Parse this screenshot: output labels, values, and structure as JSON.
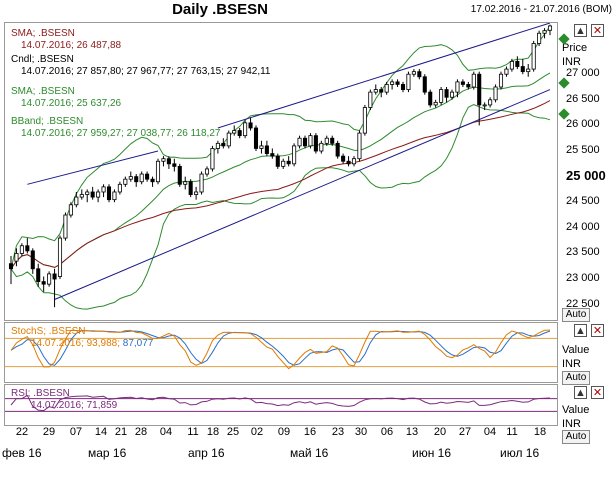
{
  "title": "Daily .BSESN",
  "date_range": "17.02.2016 - 21.07.2016 (BOM)",
  "main_panel": {
    "legend": [
      {
        "label": "SMA; .BSESN",
        "value": "14.07.2016; 26 487,88",
        "color": "#8b1a1a"
      },
      {
        "label": "Cndl; .BSESN",
        "value": "14.07.2016; 27 857,80; 27 967,77; 27 763,15; 27 942,11",
        "color": "#000000"
      },
      {
        "label": "SMA; .BSESN",
        "value": "14.07.2016; 25 637,26",
        "color": "#2e8b2e"
      },
      {
        "label": "BBand; .BSESN",
        "value": "14.07.2016; 27 959,27; 27 038,77; 26 118,27",
        "color": "#2e8b2e"
      }
    ],
    "axis_title": "Price",
    "axis_unit": "INR",
    "auto_label": "Auto",
    "y_ticks": [
      "27 000",
      "26 500",
      "26 000",
      "25 500",
      "25 000",
      "24 500",
      "24 000",
      "23 500",
      "23 000",
      "22 500"
    ]
  },
  "stoch_panel": {
    "legend_label": "StochS; .BSESN",
    "legend_value_a": "14.07.2016; 93,988;",
    "legend_value_b": "87,077",
    "axis_title": "Value",
    "axis_unit": "INR",
    "auto_label": "Auto"
  },
  "rsi_panel": {
    "legend_label": "RSI; .BSESN",
    "legend_value": "14.07.2016; 71,859",
    "axis_title": "Value",
    "axis_unit": "INR",
    "auto_label": "Auto"
  },
  "x_axis": {
    "day_ticks": [
      "22",
      "29",
      "07",
      "14",
      "21",
      "28",
      "04",
      "11",
      "18",
      "25",
      "02",
      "09",
      "16",
      "23",
      "30",
      "06",
      "13",
      "20",
      "27",
      "04",
      "11",
      "18"
    ],
    "month_labels": [
      "фев 16",
      "мар 16",
      "апр 16",
      "май 16",
      "июн 16",
      "июл 16"
    ]
  },
  "colors": {
    "candle": "#000000",
    "sma_long": "#8b1a1a",
    "sma_short": "#2e8b2e",
    "bbands": "#2e8b2e",
    "trendline": "#1a1a8c",
    "stoch_k": "#e07b00",
    "stoch_d": "#2a6fc9",
    "stoch_band": "#e0a040",
    "rsi": "#7b2a7b"
  },
  "chart_data": {
    "type": "candlestick",
    "y_unit": "INR",
    "ylim": [
      22200,
      28000
    ],
    "candles": [
      {
        "date": "2016-02-17",
        "o": 23300,
        "h": 23450,
        "l": 22900,
        "c": 23200
      },
      {
        "date": "2016-02-18",
        "o": 23350,
        "h": 23600,
        "l": 23250,
        "c": 23500
      },
      {
        "date": "2016-02-19",
        "o": 23500,
        "h": 23700,
        "l": 23450,
        "c": 23650
      },
      {
        "date": "2016-02-22",
        "o": 23650,
        "h": 23800,
        "l": 23500,
        "c": 23550
      },
      {
        "date": "2016-02-23",
        "o": 23550,
        "h": 23600,
        "l": 23100,
        "c": 23200
      },
      {
        "date": "2016-02-24",
        "o": 23200,
        "h": 23300,
        "l": 22850,
        "c": 22950
      },
      {
        "date": "2016-02-25",
        "o": 22950,
        "h": 23050,
        "l": 22750,
        "c": 22900
      },
      {
        "date": "2016-02-26",
        "o": 22900,
        "h": 23150,
        "l": 22850,
        "c": 23100
      },
      {
        "date": "2016-02-29",
        "o": 23100,
        "h": 23200,
        "l": 22450,
        "c": 23000
      },
      {
        "date": "2016-03-01",
        "o": 23050,
        "h": 23850,
        "l": 23000,
        "c": 23800
      },
      {
        "date": "2016-03-02",
        "o": 23800,
        "h": 24300,
        "l": 23750,
        "c": 24250
      },
      {
        "date": "2016-03-03",
        "o": 24250,
        "h": 24500,
        "l": 24200,
        "c": 24450
      },
      {
        "date": "2016-03-04",
        "o": 24450,
        "h": 24700,
        "l": 24400,
        "c": 24600
      },
      {
        "date": "2016-03-08",
        "o": 24600,
        "h": 24750,
        "l": 24550,
        "c": 24650
      },
      {
        "date": "2016-03-09",
        "o": 24650,
        "h": 24750,
        "l": 24500,
        "c": 24700
      },
      {
        "date": "2016-03-10",
        "o": 24700,
        "h": 24800,
        "l": 24550,
        "c": 24600
      },
      {
        "date": "2016-03-11",
        "o": 24600,
        "h": 24750,
        "l": 24500,
        "c": 24700
      },
      {
        "date": "2016-03-14",
        "o": 24700,
        "h": 24850,
        "l": 24600,
        "c": 24800
      },
      {
        "date": "2016-03-15",
        "o": 24800,
        "h": 24850,
        "l": 24500,
        "c": 24550
      },
      {
        "date": "2016-03-16",
        "o": 24550,
        "h": 24750,
        "l": 24500,
        "c": 24700
      },
      {
        "date": "2016-03-17",
        "o": 24700,
        "h": 24900,
        "l": 24650,
        "c": 24850
      },
      {
        "date": "2016-03-18",
        "o": 24850,
        "h": 25000,
        "l": 24800,
        "c": 24950
      },
      {
        "date": "2016-03-21",
        "o": 24950,
        "h": 25100,
        "l": 24900,
        "c": 25000
      },
      {
        "date": "2016-03-22",
        "o": 25000,
        "h": 25050,
        "l": 24800,
        "c": 24900
      },
      {
        "date": "2016-03-23",
        "o": 24900,
        "h": 25100,
        "l": 24850,
        "c": 25050
      },
      {
        "date": "2016-03-28",
        "o": 25050,
        "h": 25100,
        "l": 24900,
        "c": 24950
      },
      {
        "date": "2016-03-29",
        "o": 24950,
        "h": 25000,
        "l": 24800,
        "c": 24900
      },
      {
        "date": "2016-03-30",
        "o": 24900,
        "h": 25350,
        "l": 24850,
        "c": 25300
      },
      {
        "date": "2016-03-31",
        "o": 25300,
        "h": 25400,
        "l": 25200,
        "c": 25350
      },
      {
        "date": "2016-04-01",
        "o": 25350,
        "h": 25400,
        "l": 25150,
        "c": 25250
      },
      {
        "date": "2016-04-04",
        "o": 25250,
        "h": 25350,
        "l": 25100,
        "c": 25200
      },
      {
        "date": "2016-04-05",
        "o": 25200,
        "h": 25250,
        "l": 24800,
        "c": 24850
      },
      {
        "date": "2016-04-06",
        "o": 24850,
        "h": 25000,
        "l": 24750,
        "c": 24900
      },
      {
        "date": "2016-04-07",
        "o": 24900,
        "h": 24950,
        "l": 24600,
        "c": 24650
      },
      {
        "date": "2016-04-08",
        "o": 24650,
        "h": 24800,
        "l": 24550,
        "c": 24700
      },
      {
        "date": "2016-04-11",
        "o": 24700,
        "h": 25100,
        "l": 24650,
        "c": 25050
      },
      {
        "date": "2016-04-12",
        "o": 25050,
        "h": 25200,
        "l": 25000,
        "c": 25150
      },
      {
        "date": "2016-04-13",
        "o": 25150,
        "h": 25600,
        "l": 25100,
        "c": 25550
      },
      {
        "date": "2016-04-18",
        "o": 25550,
        "h": 25700,
        "l": 25450,
        "c": 25650
      },
      {
        "date": "2016-04-20",
        "o": 25650,
        "h": 25750,
        "l": 25550,
        "c": 25600
      },
      {
        "date": "2016-04-21",
        "o": 25600,
        "h": 25900,
        "l": 25550,
        "c": 25850
      },
      {
        "date": "2016-04-22",
        "o": 25850,
        "h": 26000,
        "l": 25800,
        "c": 25900
      },
      {
        "date": "2016-04-25",
        "o": 25900,
        "h": 25950,
        "l": 25750,
        "c": 25800
      },
      {
        "date": "2016-04-26",
        "o": 25800,
        "h": 26100,
        "l": 25750,
        "c": 26050
      },
      {
        "date": "2016-04-27",
        "o": 26050,
        "h": 26150,
        "l": 25900,
        "c": 25950
      },
      {
        "date": "2016-04-28",
        "o": 25950,
        "h": 26000,
        "l": 25500,
        "c": 25550
      },
      {
        "date": "2016-04-29",
        "o": 25550,
        "h": 25700,
        "l": 25450,
        "c": 25600
      },
      {
        "date": "2016-05-02",
        "o": 25600,
        "h": 25700,
        "l": 25400,
        "c": 25450
      },
      {
        "date": "2016-05-03",
        "o": 25450,
        "h": 25550,
        "l": 25350,
        "c": 25400
      },
      {
        "date": "2016-05-04",
        "o": 25400,
        "h": 25450,
        "l": 25150,
        "c": 25200
      },
      {
        "date": "2016-05-05",
        "o": 25200,
        "h": 25350,
        "l": 25150,
        "c": 25300
      },
      {
        "date": "2016-05-06",
        "o": 25300,
        "h": 25400,
        "l": 25200,
        "c": 25250
      },
      {
        "date": "2016-05-09",
        "o": 25250,
        "h": 25650,
        "l": 25200,
        "c": 25600
      },
      {
        "date": "2016-05-10",
        "o": 25600,
        "h": 25800,
        "l": 25550,
        "c": 25750
      },
      {
        "date": "2016-05-11",
        "o": 25750,
        "h": 25800,
        "l": 25550,
        "c": 25600
      },
      {
        "date": "2016-05-12",
        "o": 25600,
        "h": 25850,
        "l": 25550,
        "c": 25800
      },
      {
        "date": "2016-05-13",
        "o": 25800,
        "h": 25850,
        "l": 25450,
        "c": 25500
      },
      {
        "date": "2016-05-16",
        "o": 25500,
        "h": 25700,
        "l": 25450,
        "c": 25650
      },
      {
        "date": "2016-05-17",
        "o": 25650,
        "h": 25800,
        "l": 25600,
        "c": 25750
      },
      {
        "date": "2016-05-18",
        "o": 25750,
        "h": 25800,
        "l": 25600,
        "c": 25650
      },
      {
        "date": "2016-05-19",
        "o": 25650,
        "h": 25700,
        "l": 25350,
        "c": 25400
      },
      {
        "date": "2016-05-20",
        "o": 25400,
        "h": 25450,
        "l": 25250,
        "c": 25300
      },
      {
        "date": "2016-05-23",
        "o": 25300,
        "h": 25400,
        "l": 25200,
        "c": 25250
      },
      {
        "date": "2016-05-24",
        "o": 25250,
        "h": 25400,
        "l": 25200,
        "c": 25350
      },
      {
        "date": "2016-05-25",
        "o": 25350,
        "h": 25900,
        "l": 25300,
        "c": 25850
      },
      {
        "date": "2016-05-26",
        "o": 25850,
        "h": 26400,
        "l": 25800,
        "c": 26350
      },
      {
        "date": "2016-05-27",
        "o": 26350,
        "h": 26700,
        "l": 26300,
        "c": 26650
      },
      {
        "date": "2016-05-30",
        "o": 26650,
        "h": 26800,
        "l": 26600,
        "c": 26700
      },
      {
        "date": "2016-05-31",
        "o": 26700,
        "h": 26750,
        "l": 26550,
        "c": 26650
      },
      {
        "date": "2016-06-01",
        "o": 26650,
        "h": 26850,
        "l": 26600,
        "c": 26800
      },
      {
        "date": "2016-06-02",
        "o": 26800,
        "h": 26900,
        "l": 26700,
        "c": 26850
      },
      {
        "date": "2016-06-03",
        "o": 26850,
        "h": 26900,
        "l": 26750,
        "c": 26800
      },
      {
        "date": "2016-06-06",
        "o": 26800,
        "h": 26850,
        "l": 26650,
        "c": 26700
      },
      {
        "date": "2016-06-07",
        "o": 26700,
        "h": 27050,
        "l": 26650,
        "c": 27000
      },
      {
        "date": "2016-06-08",
        "o": 27000,
        "h": 27100,
        "l": 26950,
        "c": 27050
      },
      {
        "date": "2016-06-09",
        "o": 27050,
        "h": 27100,
        "l": 26900,
        "c": 26950
      },
      {
        "date": "2016-06-10",
        "o": 26950,
        "h": 27000,
        "l": 26600,
        "c": 26650
      },
      {
        "date": "2016-06-13",
        "o": 26650,
        "h": 26700,
        "l": 26350,
        "c": 26400
      },
      {
        "date": "2016-06-14",
        "o": 26400,
        "h": 26500,
        "l": 26350,
        "c": 26450
      },
      {
        "date": "2016-06-15",
        "o": 26450,
        "h": 26750,
        "l": 26400,
        "c": 26700
      },
      {
        "date": "2016-06-16",
        "o": 26700,
        "h": 26750,
        "l": 26450,
        "c": 26550
      },
      {
        "date": "2016-06-17",
        "o": 26550,
        "h": 26700,
        "l": 26500,
        "c": 26650
      },
      {
        "date": "2016-06-20",
        "o": 26650,
        "h": 26900,
        "l": 26550,
        "c": 26850
      },
      {
        "date": "2016-06-21",
        "o": 26850,
        "h": 26900,
        "l": 26750,
        "c": 26800
      },
      {
        "date": "2016-06-22",
        "o": 26800,
        "h": 26850,
        "l": 26700,
        "c": 26750
      },
      {
        "date": "2016-06-23",
        "o": 26750,
        "h": 27050,
        "l": 26700,
        "c": 27000
      },
      {
        "date": "2016-06-24",
        "o": 27000,
        "h": 27050,
        "l": 26000,
        "c": 26400
      },
      {
        "date": "2016-06-27",
        "o": 26400,
        "h": 26450,
        "l": 26300,
        "c": 26400
      },
      {
        "date": "2016-06-28",
        "o": 26400,
        "h": 26550,
        "l": 26350,
        "c": 26500
      },
      {
        "date": "2016-06-29",
        "o": 26500,
        "h": 26800,
        "l": 26450,
        "c": 26750
      },
      {
        "date": "2016-06-30",
        "o": 26750,
        "h": 27050,
        "l": 26700,
        "c": 27000
      },
      {
        "date": "2016-07-01",
        "o": 27000,
        "h": 27150,
        "l": 26950,
        "c": 27100
      },
      {
        "date": "2016-07-04",
        "o": 27100,
        "h": 27300,
        "l": 27050,
        "c": 27250
      },
      {
        "date": "2016-07-05",
        "o": 27250,
        "h": 27350,
        "l": 27100,
        "c": 27150
      },
      {
        "date": "2016-07-07",
        "o": 27150,
        "h": 27300,
        "l": 27000,
        "c": 27050
      },
      {
        "date": "2016-07-08",
        "o": 27050,
        "h": 27200,
        "l": 26950,
        "c": 27100
      },
      {
        "date": "2016-07-11",
        "o": 27100,
        "h": 27650,
        "l": 27050,
        "c": 27600
      },
      {
        "date": "2016-07-12",
        "o": 27600,
        "h": 27850,
        "l": 27550,
        "c": 27800
      },
      {
        "date": "2016-07-13",
        "o": 27800,
        "h": 27900,
        "l": 27700,
        "c": 27850
      },
      {
        "date": "2016-07-14",
        "o": 27857.8,
        "h": 27967.77,
        "l": 27763.15,
        "c": 27942.11
      }
    ],
    "sma_long_last": 26487.88,
    "sma_short_last": 25637.26,
    "bbands_last": {
      "upper": 27959.27,
      "middle": 27038.77,
      "lower": 26118.27
    },
    "stoch_last": {
      "k": 93.988,
      "d": 87.077
    },
    "rsi_last": 71.859
  }
}
